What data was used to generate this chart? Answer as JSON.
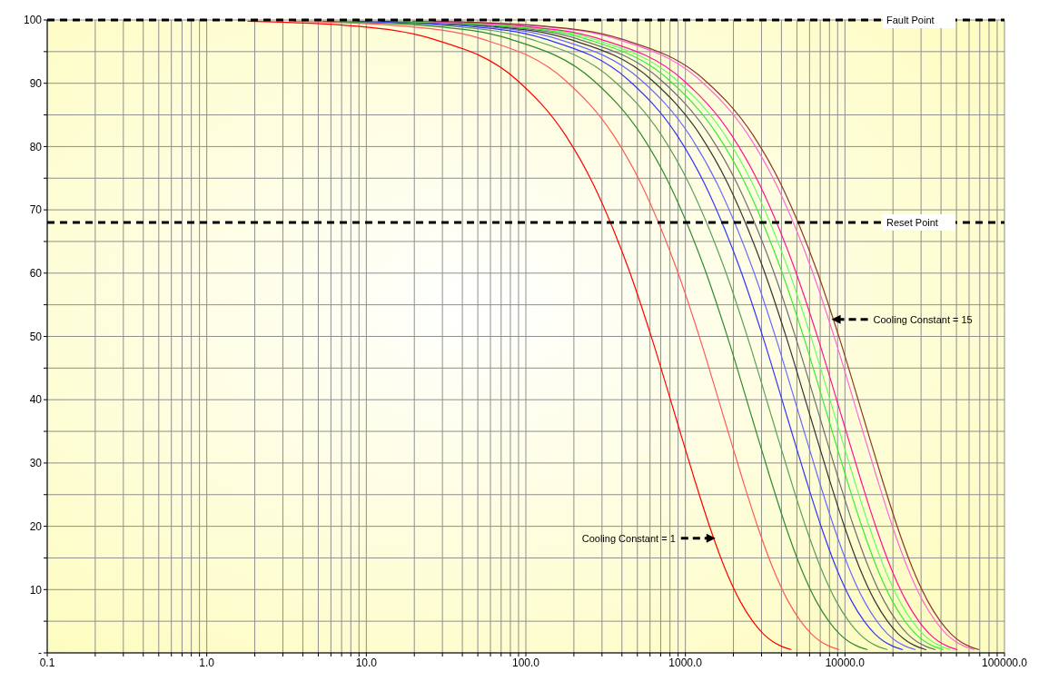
{
  "chart_data": {
    "type": "line",
    "log": "x",
    "grid": true,
    "legend": false,
    "marker": "none",
    "line_style": "solid",
    "xlim": [
      0.1,
      100000
    ],
    "xticks": [
      {
        "value": 0.1,
        "label": "0.1"
      },
      {
        "value": 0.2,
        "label": null
      },
      {
        "value": 0.3,
        "label": null
      },
      {
        "value": 0.4,
        "label": null
      },
      {
        "value": 0.5,
        "label": null
      },
      {
        "value": 0.6,
        "label": null
      },
      {
        "value": 0.7,
        "label": null
      },
      {
        "value": 0.8,
        "label": null
      },
      {
        "value": 0.9,
        "label": null
      },
      {
        "value": 1,
        "label": "1.0"
      },
      {
        "value": 2,
        "label": null
      },
      {
        "value": 3,
        "label": null
      },
      {
        "value": 4,
        "label": null
      },
      {
        "value": 5,
        "label": null
      },
      {
        "value": 6,
        "label": null
      },
      {
        "value": 7,
        "label": null
      },
      {
        "value": 8,
        "label": null
      },
      {
        "value": 9,
        "label": null
      },
      {
        "value": 10,
        "label": "10.0"
      },
      {
        "value": 20,
        "label": null
      },
      {
        "value": 30,
        "label": null
      },
      {
        "value": 40,
        "label": null
      },
      {
        "value": 50,
        "label": null
      },
      {
        "value": 60,
        "label": null
      },
      {
        "value": 70,
        "label": null
      },
      {
        "value": 80,
        "label": null
      },
      {
        "value": 90,
        "label": null
      },
      {
        "value": 100,
        "label": "100.0"
      },
      {
        "value": 200,
        "label": null
      },
      {
        "value": 300,
        "label": null
      },
      {
        "value": 400,
        "label": null
      },
      {
        "value": 500,
        "label": null
      },
      {
        "value": 600,
        "label": null
      },
      {
        "value": 700,
        "label": null
      },
      {
        "value": 800,
        "label": null
      },
      {
        "value": 900,
        "label": null
      },
      {
        "value": 1000,
        "label": "1000.0"
      },
      {
        "value": 2000,
        "label": null
      },
      {
        "value": 3000,
        "label": null
      },
      {
        "value": 4000,
        "label": null
      },
      {
        "value": 5000,
        "label": null
      },
      {
        "value": 6000,
        "label": null
      },
      {
        "value": 7000,
        "label": null
      },
      {
        "value": 8000,
        "label": null
      },
      {
        "value": 9000,
        "label": null
      },
      {
        "value": 10000,
        "label": "10000.0"
      },
      {
        "value": 20000,
        "label": null
      },
      {
        "value": 30000,
        "label": null
      },
      {
        "value": 40000,
        "label": null
      },
      {
        "value": 50000,
        "label": null
      },
      {
        "value": 60000,
        "label": null
      },
      {
        "value": 70000,
        "label": null
      },
      {
        "value": 80000,
        "label": null
      },
      {
        "value": 90000,
        "label": null
      },
      {
        "value": 100000,
        "label": "100000.0"
      }
    ],
    "ylim": [
      0,
      100
    ],
    "yticks": [
      {
        "value": 0,
        "label": "-"
      },
      {
        "value": 5,
        "label": null
      },
      10,
      {
        "value": 15,
        "label": null
      },
      20,
      {
        "value": 25,
        "label": null
      },
      30,
      {
        "value": 35,
        "label": null
      },
      40,
      {
        "value": 45,
        "label": null
      },
      50,
      {
        "value": 55,
        "label": null
      },
      60,
      {
        "value": 65,
        "label": null
      },
      70,
      {
        "value": 75,
        "label": null
      },
      80,
      {
        "value": 85,
        "label": null
      },
      90,
      {
        "value": 95,
        "label": null
      },
      100
    ],
    "series": [
      {
        "color": "#ff0000",
        "x": [
          1.8,
          8.8,
          26,
          88,
          176,
          264,
          352,
          440,
          616,
          880,
          1144,
          1408,
          1760,
          2200,
          2640,
          3080,
          3520,
          3960,
          4620
        ],
        "values": [
          99.8,
          99.0,
          97.0,
          90.5,
          81.9,
          74.1,
          67.0,
          60.7,
          49.7,
          36.8,
          27.3,
          20.2,
          13.5,
          8.2,
          5.0,
          3.0,
          1.8,
          1.1,
          0.5
        ]
      },
      {
        "color": "#ff5a5a",
        "x": [
          3.5,
          17.6,
          53,
          176,
          352,
          528,
          704,
          880,
          1232,
          1760,
          2288,
          2816,
          3520,
          4400,
          5280,
          6160,
          7040,
          7920,
          9240
        ],
        "values": [
          99.8,
          99.0,
          97.0,
          90.5,
          81.9,
          74.1,
          67.0,
          60.7,
          49.7,
          36.8,
          27.3,
          20.2,
          13.5,
          8.2,
          5.0,
          3.0,
          1.8,
          1.1,
          0.5
        ]
      },
      {
        "color": "#2e8b2e",
        "x": [
          5.3,
          26.4,
          79,
          264,
          528,
          792,
          1056,
          1320,
          1848,
          2640,
          3432,
          4224,
          5280,
          6600,
          7920,
          9240,
          10560,
          11880,
          13860
        ],
        "values": [
          99.8,
          99.0,
          97.0,
          90.5,
          81.9,
          74.1,
          67.0,
          60.7,
          49.7,
          36.8,
          27.3,
          20.2,
          13.5,
          8.2,
          5.0,
          3.0,
          1.8,
          1.1,
          0.5
        ]
      },
      {
        "color": "#5aa05a",
        "x": [
          7.0,
          35,
          106,
          352,
          704,
          1056,
          1408,
          1760,
          2464,
          3520,
          4576,
          5632,
          7040,
          8800,
          10560,
          12320,
          14080,
          15840,
          18480
        ],
        "values": [
          99.8,
          99.0,
          97.0,
          90.5,
          81.9,
          74.1,
          67.0,
          60.7,
          49.7,
          36.8,
          27.3,
          20.2,
          13.5,
          8.2,
          5.0,
          3.0,
          1.8,
          1.1,
          0.5
        ]
      },
      {
        "color": "#3333ff",
        "x": [
          8.8,
          44,
          132,
          440,
          880,
          1320,
          1760,
          2200,
          3080,
          4400,
          5720,
          7040,
          8800,
          11000,
          13200,
          15400,
          17600,
          19800,
          23100
        ],
        "values": [
          99.8,
          99.0,
          97.0,
          90.5,
          81.9,
          74.1,
          67.0,
          60.7,
          49.7,
          36.8,
          27.3,
          20.2,
          13.5,
          8.2,
          5.0,
          3.0,
          1.8,
          1.1,
          0.5
        ]
      },
      {
        "color": "#6a6aff",
        "x": [
          10.6,
          53,
          158,
          528,
          1056,
          1584,
          2112,
          2640,
          3696,
          5280,
          6864,
          8448,
          10560,
          13200,
          15840,
          18480,
          21120,
          23760,
          27720
        ],
        "values": [
          99.8,
          99.0,
          97.0,
          90.5,
          81.9,
          74.1,
          67.0,
          60.7,
          49.7,
          36.8,
          27.3,
          20.2,
          13.5,
          8.2,
          5.0,
          3.0,
          1.8,
          1.1,
          0.5
        ]
      },
      {
        "color": "#333333",
        "x": [
          12.3,
          62,
          185,
          616,
          1232,
          1848,
          2464,
          3080,
          4312,
          6160,
          8008,
          9856,
          12320,
          15400,
          18480,
          21560,
          24640,
          27720,
          32340
        ],
        "values": [
          99.8,
          99.0,
          97.0,
          90.5,
          81.9,
          74.1,
          67.0,
          60.7,
          49.7,
          36.8,
          27.3,
          20.2,
          13.5,
          8.2,
          5.0,
          3.0,
          1.8,
          1.1,
          0.5
        ]
      },
      {
        "color": "#6e6e6e",
        "x": [
          14.1,
          70,
          211,
          704,
          1408,
          2112,
          2816,
          3520,
          4928,
          7040,
          9152,
          11264,
          14080,
          17600,
          21120,
          24640,
          28160,
          31680,
          36960
        ],
        "values": [
          99.8,
          99.0,
          97.0,
          90.5,
          81.9,
          74.1,
          67.0,
          60.7,
          49.7,
          36.8,
          27.3,
          20.2,
          13.5,
          8.2,
          5.0,
          3.0,
          1.8,
          1.1,
          0.5
        ]
      },
      {
        "color": "#33ee33",
        "x": [
          15.8,
          79,
          238,
          792,
          1584,
          2376,
          3168,
          3960,
          5544,
          7920,
          10296,
          12672,
          15840,
          19800,
          23760,
          27720,
          31680,
          35640,
          41580
        ],
        "values": [
          99.8,
          99.0,
          97.0,
          90.5,
          81.9,
          74.1,
          67.0,
          60.7,
          49.7,
          36.8,
          27.3,
          20.2,
          13.5,
          8.2,
          5.0,
          3.0,
          1.8,
          1.1,
          0.5
        ]
      },
      {
        "color": "#66ff66",
        "x": [
          17.6,
          88,
          264,
          880,
          1760,
          2640,
          3520,
          4400,
          6160,
          8800,
          11440,
          14080,
          17600,
          22000,
          26400,
          30800,
          35200,
          39600,
          46200
        ],
        "values": [
          99.8,
          99.0,
          97.0,
          90.5,
          81.9,
          74.1,
          67.0,
          60.7,
          49.7,
          36.8,
          27.3,
          20.2,
          13.5,
          8.2,
          5.0,
          3.0,
          1.8,
          1.1,
          0.5
        ]
      },
      {
        "color": "#ff1493",
        "x": [
          19.4,
          97,
          290,
          968,
          1936,
          2904,
          3872,
          4840,
          6776,
          9680,
          12584,
          15488,
          19360,
          24200,
          29040,
          33880,
          38720,
          43560,
          50820
        ],
        "values": [
          99.8,
          99.0,
          97.0,
          90.5,
          81.9,
          74.1,
          67.0,
          60.7,
          49.7,
          36.8,
          27.3,
          20.2,
          13.5,
          8.2,
          5.0,
          3.0,
          1.8,
          1.1,
          0.5
        ]
      },
      {
        "color": "#ff66dd",
        "x": [
          24.6,
          123,
          370,
          1232,
          2464,
          3696,
          4928,
          6160,
          8624,
          12320,
          16016,
          19712,
          24640,
          30800,
          36960,
          43120,
          49280,
          55440,
          64680
        ],
        "values": [
          99.8,
          99.0,
          97.0,
          90.5,
          81.9,
          74.1,
          67.0,
          60.7,
          49.7,
          36.8,
          27.3,
          20.2,
          13.5,
          8.2,
          5.0,
          3.0,
          1.8,
          1.1,
          0.5
        ]
      },
      {
        "color": "#8b3a2a",
        "x": [
          26.4,
          132,
          396,
          1320,
          2640,
          3960,
          5280,
          6600,
          9240,
          13200,
          17160,
          21120,
          26400,
          33000,
          39600,
          46200,
          52800,
          59400,
          69300
        ],
        "values": [
          99.8,
          99.0,
          97.0,
          90.5,
          81.9,
          74.1,
          67.0,
          60.7,
          49.7,
          36.8,
          27.3,
          20.2,
          13.5,
          8.2,
          5.0,
          3.0,
          1.8,
          1.1,
          0.5
        ]
      }
    ],
    "ref_lines": [
      {
        "axis": "y",
        "value": 100,
        "label": "Fault Point",
        "color": "#000000",
        "line_style": "dashed"
      },
      {
        "axis": "y",
        "value": 68,
        "label": "Reset Point",
        "color": "#000000",
        "line_style": "dashed"
      }
    ],
    "annotations": [
      {
        "text": "Cooling Constant = 1",
        "x": 1504,
        "y": 18.1
      },
      {
        "text": "Cooling Constant = 15",
        "x": 8460,
        "y": 52.7
      }
    ]
  }
}
